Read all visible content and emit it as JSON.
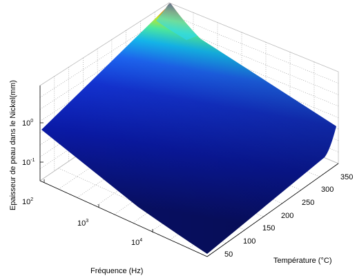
{
  "chart_data": {
    "type": "surface",
    "colormap": "jet",
    "xlabel": "Fréquence (Hz)",
    "ylabel": "Température (°C)",
    "zlabel": "Epaisseur de peau dans le Nickel(mm)",
    "x_scale": "log",
    "z_scale": "log",
    "x_ticks": [
      {
        "base": "10",
        "exp": "2",
        "value": 100
      },
      {
        "base": "10",
        "exp": "3",
        "value": 1000
      },
      {
        "base": "10",
        "exp": "4",
        "value": 10000
      }
    ],
    "y_ticks": [
      "50",
      "100",
      "150",
      "200",
      "250",
      "300",
      "350"
    ],
    "z_ticks": [
      {
        "base": "10",
        "exp": "-1",
        "value": 0.1
      },
      {
        "base": "10",
        "exp": "0",
        "value": 1
      }
    ],
    "xlim": [
      100,
      100000
    ],
    "ylim": [
      20,
      360
    ],
    "zlim": [
      0.01,
      20
    ],
    "grid": true,
    "surface_corners": {
      "f100_T20_mm": 0.6,
      "f100_T360_mm": 18,
      "f100000_T20_mm": 0.012,
      "f100000_T360_mm": 0.6
    }
  }
}
